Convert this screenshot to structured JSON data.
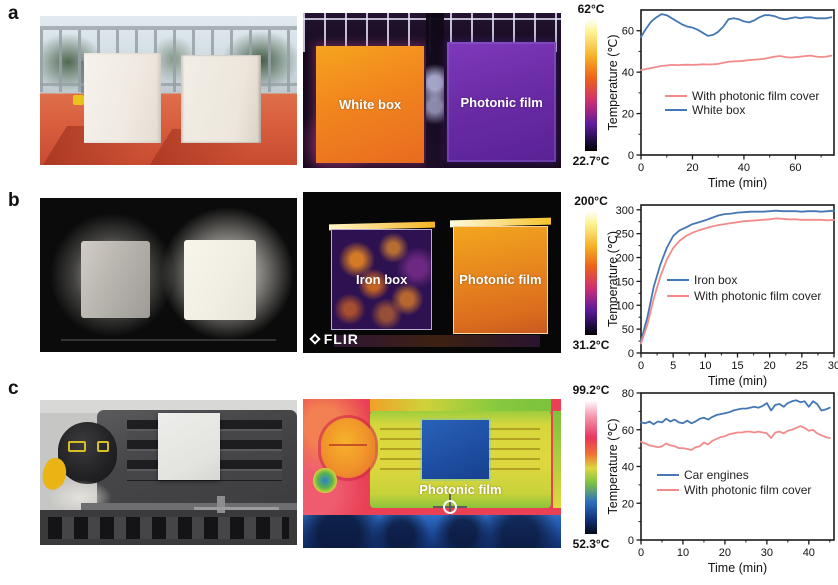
{
  "panels": [
    {
      "label": "a",
      "photo_alt": "Two white boxes outdoors on an orange table in front of a railing",
      "thermal_labels": {
        "left": "White box",
        "right": "Photonic film"
      },
      "colorbar": {
        "top": "62°C",
        "bottom": "22.7°C"
      }
    },
    {
      "label": "b",
      "photo_alt": "Gray iron box and white photonic-film box on a dark surface",
      "thermal_labels": {
        "left": "Iron box",
        "right": "Photonic film"
      },
      "flir_logo": "FLIR",
      "colorbar": {
        "top": "200°C",
        "bottom": "31.2°C"
      }
    },
    {
      "label": "c",
      "photo_alt": "Car engine bay with a white photonic film patch on the engine cover",
      "thermal_labels": {
        "center": "Photonic film"
      },
      "colorbar": {
        "top": "99.2°C",
        "bottom": "52.3°C"
      }
    }
  ],
  "chart_data": [
    {
      "type": "line",
      "xlabel": "Time (min)",
      "ylabel": "Temperature (℃)",
      "xlim": [
        0,
        75
      ],
      "ylim": [
        0,
        70
      ],
      "x_ticks": [
        0,
        20,
        40,
        60
      ],
      "y_ticks": [
        0,
        20,
        40,
        60
      ],
      "x_minor": [
        10,
        30,
        50,
        70
      ],
      "y_minor": [
        10,
        30,
        50
      ],
      "grid": false,
      "legend_position": "inside center-left",
      "series": [
        {
          "name": "With photonic film cover",
          "color": "#f28b8b",
          "x": [
            0,
            2,
            4,
            6,
            8,
            10,
            12,
            14,
            16,
            18,
            20,
            22,
            24,
            26,
            28,
            30,
            32,
            34,
            36,
            38,
            40,
            42,
            44,
            46,
            48,
            50,
            52,
            54,
            56,
            58,
            60,
            62,
            64,
            66,
            68,
            70,
            72,
            74
          ],
          "y": [
            41,
            41.5,
            42,
            42.5,
            43,
            43.2,
            43.5,
            43.4,
            43.5,
            43.6,
            43.5,
            43.6,
            43.8,
            43.7,
            43.8,
            44,
            44.5,
            45,
            45.2,
            45.3,
            45.5,
            45.8,
            46,
            46.2,
            46.5,
            47,
            47.5,
            47.8,
            47.3,
            47,
            47.2,
            47.5,
            47.8,
            48,
            47.5,
            47.3,
            47.5,
            48
          ]
        },
        {
          "name": "White box",
          "color": "#4377b5",
          "x": [
            0,
            2,
            4,
            6,
            8,
            10,
            12,
            14,
            16,
            18,
            20,
            22,
            24,
            26,
            28,
            30,
            32,
            34,
            36,
            38,
            40,
            42,
            44,
            46,
            48,
            50,
            52,
            54,
            56,
            58,
            60,
            62,
            64,
            66,
            68,
            70,
            72,
            74
          ],
          "y": [
            57,
            61,
            64.5,
            66.5,
            68,
            67.5,
            66,
            64.5,
            63,
            62,
            61.5,
            60.5,
            59,
            57.5,
            58,
            59.5,
            62,
            65.5,
            66,
            65.5,
            64.5,
            64,
            65,
            66.5,
            67.5,
            67.5,
            67,
            66,
            65.5,
            66,
            66.5,
            66,
            66.5,
            66.5,
            66,
            66,
            66,
            66.5
          ]
        }
      ]
    },
    {
      "type": "line",
      "xlabel": "Time (min)",
      "ylabel": "Temperature (℃)",
      "xlim": [
        0,
        30
      ],
      "ylim": [
        0,
        310
      ],
      "x_ticks": [
        0,
        5,
        10,
        15,
        20,
        25,
        30
      ],
      "y_ticks": [
        0,
        50,
        100,
        150,
        200,
        250,
        300
      ],
      "x_minor": [
        2.5,
        7.5,
        12.5,
        17.5,
        22.5,
        27.5
      ],
      "y_minor": [
        25,
        75,
        125,
        175,
        225,
        275
      ],
      "grid": false,
      "legend_position": "inside center-left",
      "series": [
        {
          "name": "Iron box",
          "color": "#4377b5",
          "x": [
            0,
            1,
            2,
            3,
            4,
            5,
            6,
            7,
            8,
            9,
            10,
            11,
            12,
            13,
            14,
            15,
            16,
            17,
            18,
            19,
            20,
            21,
            22,
            23,
            24,
            25,
            26,
            27,
            28,
            29,
            30
          ],
          "y": [
            25,
            75,
            140,
            185,
            220,
            245,
            257,
            263,
            270,
            274,
            278,
            283,
            288,
            291,
            292,
            294,
            295,
            296,
            296,
            296,
            297,
            298,
            297,
            297,
            297,
            296,
            297,
            297,
            296,
            297,
            298
          ]
        },
        {
          "name": "With photonic film cover",
          "color": "#f28b8b",
          "x": [
            0,
            1,
            2,
            3,
            4,
            5,
            6,
            7,
            8,
            9,
            10,
            11,
            12,
            13,
            14,
            15,
            16,
            17,
            18,
            19,
            20,
            21,
            22,
            23,
            24,
            25,
            26,
            27,
            28,
            29,
            30
          ],
          "y": [
            20,
            60,
            115,
            160,
            195,
            220,
            235,
            245,
            252,
            257,
            261,
            265,
            268,
            270,
            272,
            274,
            276,
            277,
            278,
            279,
            280,
            282,
            281,
            280,
            280,
            279,
            279,
            279,
            279,
            278,
            279
          ]
        }
      ]
    },
    {
      "type": "line",
      "xlabel": "Time (min)",
      "ylabel": "Temperature (℃)",
      "xlim": [
        0,
        46
      ],
      "ylim": [
        0,
        80
      ],
      "x_ticks": [
        0,
        10,
        20,
        30,
        40
      ],
      "y_ticks": [
        0,
        20,
        40,
        60,
        80
      ],
      "x_minor": [
        5,
        15,
        25,
        35,
        45
      ],
      "y_minor": [
        10,
        30,
        50,
        70
      ],
      "grid": false,
      "legend_position": "inside center-left",
      "series": [
        {
          "name": "Car engines",
          "color": "#4377b5",
          "x": [
            0,
            1,
            2,
            3,
            4,
            5,
            6,
            7,
            8,
            9,
            10,
            11,
            12,
            13,
            14,
            15,
            16,
            17,
            18,
            19,
            20,
            21,
            22,
            23,
            24,
            25,
            26,
            27,
            28,
            29,
            30,
            31,
            32,
            33,
            34,
            35,
            36,
            37,
            38,
            39,
            40,
            41,
            42,
            43,
            44,
            45
          ],
          "y": [
            64,
            63.5,
            64.5,
            63,
            64.5,
            64,
            66,
            64.5,
            65.5,
            64,
            63.5,
            65,
            63.5,
            64.5,
            66,
            66.5,
            65.5,
            67,
            68,
            68.5,
            69,
            69.5,
            70.5,
            71,
            71.5,
            71.5,
            72,
            72.5,
            72,
            73,
            74.5,
            70.5,
            73.5,
            74,
            72.5,
            74.5,
            75.5,
            76,
            75,
            75.5,
            72.5,
            75.5,
            74,
            70.5,
            71,
            72
          ]
        },
        {
          "name": "With photonic film cover",
          "color": "#f28b8b",
          "x": [
            0,
            1,
            2,
            3,
            4,
            5,
            6,
            7,
            8,
            9,
            10,
            11,
            12,
            13,
            14,
            15,
            16,
            17,
            18,
            19,
            20,
            21,
            22,
            23,
            24,
            25,
            26,
            27,
            28,
            29,
            30,
            31,
            32,
            33,
            34,
            35,
            36,
            37,
            38,
            39,
            40,
            41,
            42,
            43,
            44,
            45
          ],
          "y": [
            53.5,
            52.5,
            51.5,
            51,
            50.5,
            51,
            52.5,
            51.5,
            51,
            50,
            50,
            49.5,
            49,
            50.5,
            51,
            53,
            52,
            54,
            55,
            56,
            56.5,
            57.5,
            58,
            58.5,
            58.5,
            59,
            59,
            58.5,
            59,
            58.5,
            58,
            55.5,
            58.5,
            59,
            58,
            59.5,
            60,
            61,
            62,
            61,
            59.5,
            60,
            58,
            57,
            56,
            55.5
          ]
        }
      ]
    }
  ]
}
